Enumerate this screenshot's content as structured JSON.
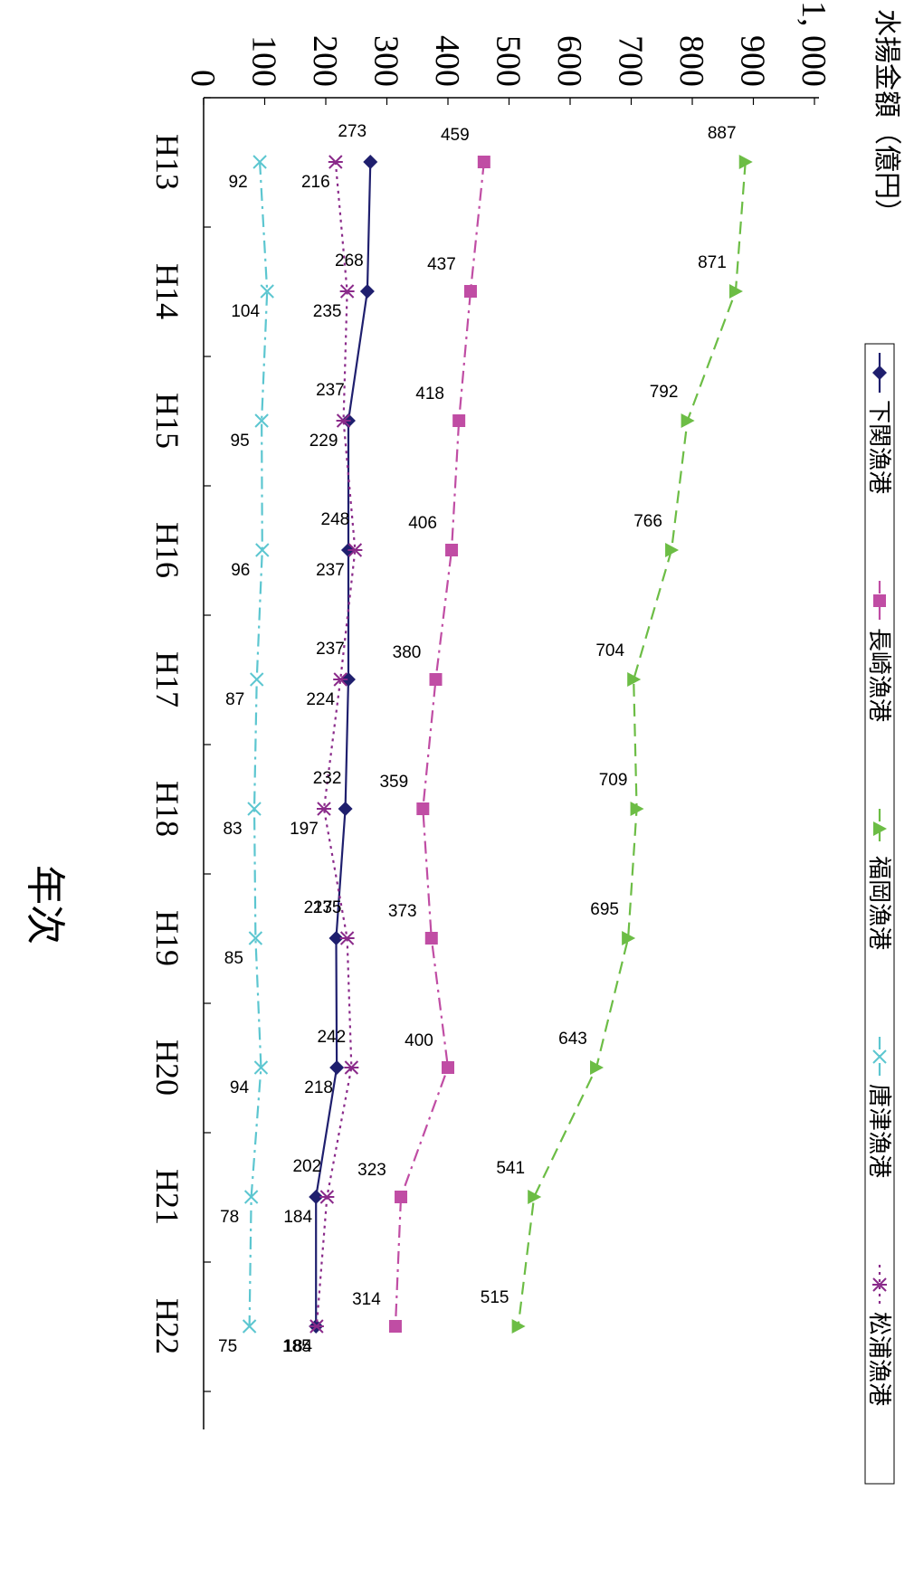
{
  "chart_data": {
    "type": "line",
    "orientation": "rotated-90-clockwise",
    "ylabel": "水揚金額（億円）",
    "xlabel": "年次",
    "categories": [
      "H13",
      "H14",
      "H15",
      "H16",
      "H17",
      "H18",
      "H19",
      "H20",
      "H21",
      "H22"
    ],
    "ylim": [
      0,
      1000
    ],
    "yticks": [
      {
        "value": 0,
        "label": "0"
      },
      {
        "value": 100,
        "label": "100"
      },
      {
        "value": 200,
        "label": "200"
      },
      {
        "value": 300,
        "label": "300"
      },
      {
        "value": 400,
        "label": "400"
      },
      {
        "value": 500,
        "label": "500"
      },
      {
        "value": 600,
        "label": "600"
      },
      {
        "value": 700,
        "label": "700"
      },
      {
        "value": 800,
        "label": "800"
      },
      {
        "value": 900,
        "label": "900"
      },
      {
        "value": 1000,
        "label": "1, 000"
      }
    ],
    "grid": false,
    "legend": "top",
    "series": [
      {
        "name": "下関漁港",
        "values": [
          273,
          268,
          237,
          237,
          237,
          232,
          217,
          218,
          184,
          184
        ],
        "color": "#1f1f6e",
        "marker": "diamond",
        "dash": "solid"
      },
      {
        "name": "長崎漁港",
        "values": [
          459,
          437,
          418,
          406,
          380,
          359,
          373,
          400,
          323,
          314
        ],
        "color": "#c04da4",
        "marker": "square",
        "dash": "dashdot"
      },
      {
        "name": "福岡漁港",
        "values": [
          887,
          871,
          792,
          766,
          704,
          709,
          695,
          643,
          541,
          515
        ],
        "color": "#6cbd45",
        "marker": "triangle",
        "dash": "dashed"
      },
      {
        "name": "唐津漁港",
        "values": [
          92,
          104,
          95,
          96,
          87,
          83,
          85,
          94,
          78,
          75
        ],
        "color": "#5cc6d0",
        "marker": "x",
        "dash": "dashdot"
      },
      {
        "name": "松浦漁港",
        "values": [
          216,
          235,
          229,
          248,
          224,
          197,
          235,
          242,
          202,
          185
        ],
        "color": "#8a2a8a",
        "marker": "asterisk",
        "dash": "dotted"
      }
    ]
  }
}
